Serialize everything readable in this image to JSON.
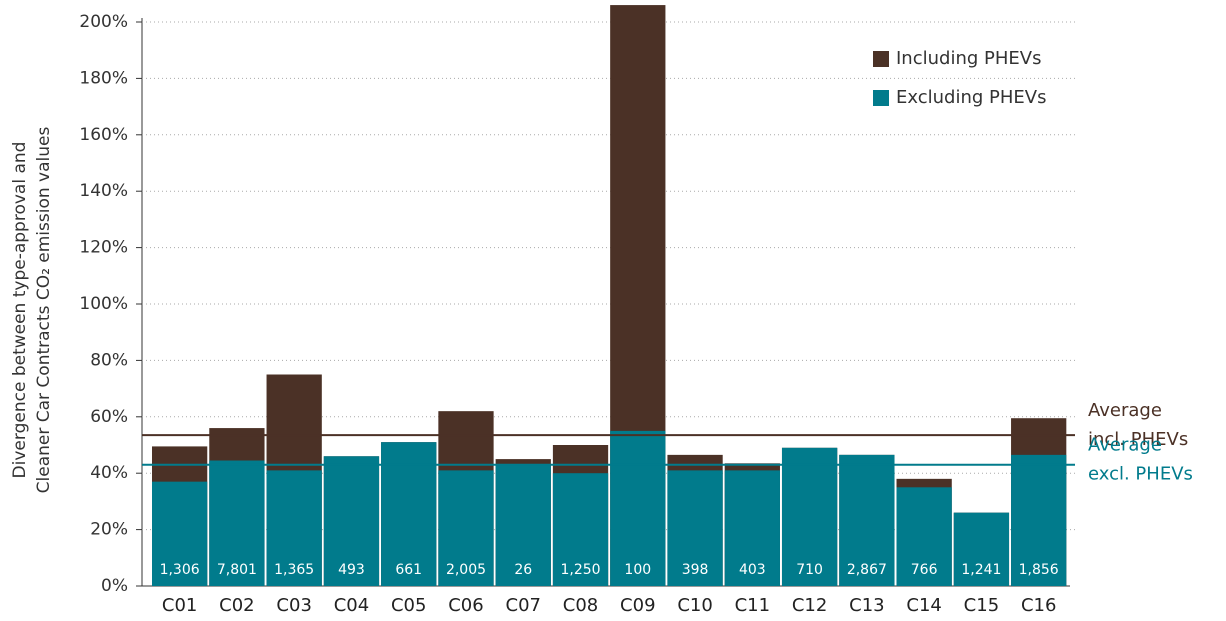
{
  "chart_data": {
    "type": "bar",
    "y_label_lines": [
      "Divergence between type-approval and",
      "Cleaner Car Contracts CO₂ emission values"
    ],
    "categories": [
      "C01",
      "C02",
      "C03",
      "C04",
      "C05",
      "C06",
      "C07",
      "C08",
      "C09",
      "C10",
      "C11",
      "C12",
      "C13",
      "C14",
      "C15",
      "C16"
    ],
    "series": [
      {
        "name": "Including PHEVs",
        "color": "#4b3126",
        "values": [
          49.5,
          56,
          75,
          46,
          51,
          62,
          45,
          50,
          206,
          46.5,
          43.5,
          49,
          46.5,
          38,
          26,
          59.5
        ]
      },
      {
        "name": "Excluding PHEVs",
        "color": "#017b8c",
        "values": [
          37,
          44.5,
          41,
          46,
          51,
          41,
          43,
          40,
          55,
          41,
          41,
          49,
          46.5,
          35,
          26,
          46.5
        ]
      }
    ],
    "counts": [
      "1,306",
      "7,801",
      "1,365",
      "493",
      "661",
      "2,005",
      "26",
      "1,250",
      "100",
      "398",
      "403",
      "710",
      "2,867",
      "766",
      "1,241",
      "1,856"
    ],
    "reference_lines": [
      {
        "label_lines": [
          "Average",
          "incl. PHEVs"
        ],
        "value": 53.5,
        "color": "#4b3126"
      },
      {
        "label_lines": [
          "Average",
          "excl. PHEVs"
        ],
        "value": 43,
        "color": "#017b8c"
      }
    ],
    "ylim": [
      0,
      207
    ],
    "yticks": [
      {
        "value": 0,
        "label": "0%"
      },
      {
        "value": 20,
        "label": "20%"
      },
      {
        "value": 40,
        "label": "40%"
      },
      {
        "value": 60,
        "label": "60%"
      },
      {
        "value": 80,
        "label": "80%"
      },
      {
        "value": 100,
        "label": "100%"
      },
      {
        "value": 120,
        "label": "120%"
      },
      {
        "value": 140,
        "label": "140%"
      },
      {
        "value": 160,
        "label": "160%"
      },
      {
        "value": 180,
        "label": "180%"
      },
      {
        "value": 200,
        "label": "200%"
      }
    ],
    "grid": true,
    "legend": "upper right"
  }
}
